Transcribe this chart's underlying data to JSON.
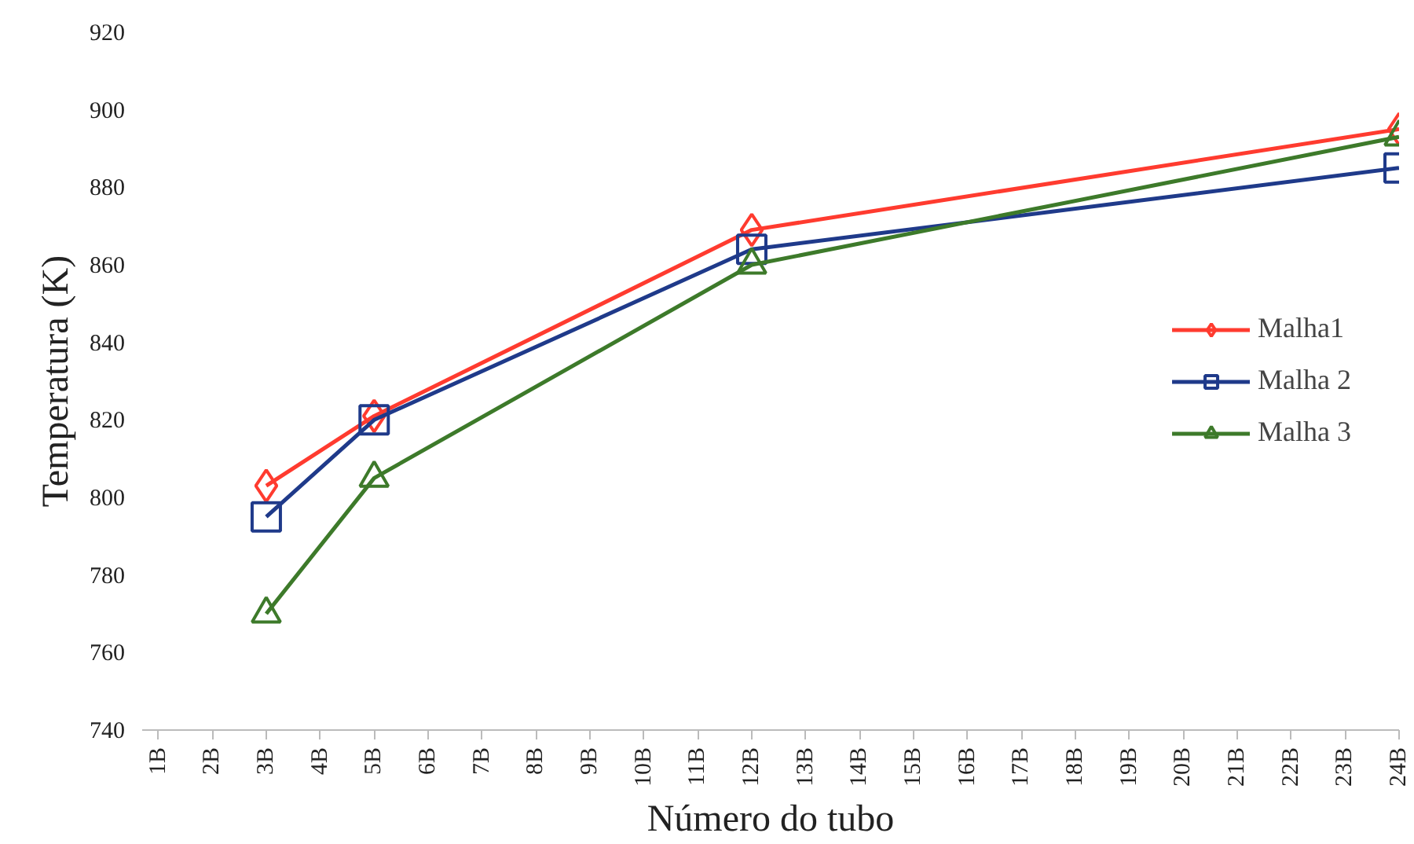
{
  "chart_data": {
    "type": "line",
    "xlabel": "Número do tubo",
    "ylabel": "Temperatura (K)",
    "xlim": [
      0.7,
      24
    ],
    "xticks": [
      {
        "value": 1,
        "label": "1B"
      },
      {
        "value": 2,
        "label": "2B"
      },
      {
        "value": 3,
        "label": "3B"
      },
      {
        "value": 4,
        "label": "4B"
      },
      {
        "value": 5,
        "label": "5B"
      },
      {
        "value": 6,
        "label": "6B"
      },
      {
        "value": 7,
        "label": "7B"
      },
      {
        "value": 8,
        "label": "8B"
      },
      {
        "value": 9,
        "label": "9B"
      },
      {
        "value": 10,
        "label": "10B"
      },
      {
        "value": 11,
        "label": "11B"
      },
      {
        "value": 12,
        "label": "12B"
      },
      {
        "value": 13,
        "label": "13B"
      },
      {
        "value": 14,
        "label": "14B"
      },
      {
        "value": 15,
        "label": "15B"
      },
      {
        "value": 16,
        "label": "16B"
      },
      {
        "value": 17,
        "label": "17B"
      },
      {
        "value": 18,
        "label": "18B"
      },
      {
        "value": 19,
        "label": "19B"
      },
      {
        "value": 20,
        "label": "20B"
      },
      {
        "value": 21,
        "label": "21B"
      },
      {
        "value": 22,
        "label": "22B"
      },
      {
        "value": 23,
        "label": "23B"
      },
      {
        "value": 24,
        "label": "24B"
      }
    ],
    "ylim": [
      740,
      920
    ],
    "yticks": [
      740,
      760,
      780,
      800,
      820,
      840,
      860,
      880,
      900,
      920
    ],
    "grid": false,
    "legend": "right",
    "series": [
      {
        "name": "Malha1",
        "color": "#ff3b2f",
        "marker": "diamond",
        "x": [
          3,
          5,
          12,
          24
        ],
        "values": [
          803,
          821,
          869,
          895
        ]
      },
      {
        "name": "Malha 2",
        "color": "#1f3a8a",
        "marker": "square",
        "x": [
          3,
          5,
          12,
          24
        ],
        "values": [
          795,
          820,
          864,
          885
        ]
      },
      {
        "name": "Malha 3",
        "color": "#3d7a2a",
        "marker": "triangle",
        "x": [
          3,
          5,
          12,
          24
        ],
        "values": [
          770,
          805,
          860,
          893
        ]
      }
    ]
  }
}
